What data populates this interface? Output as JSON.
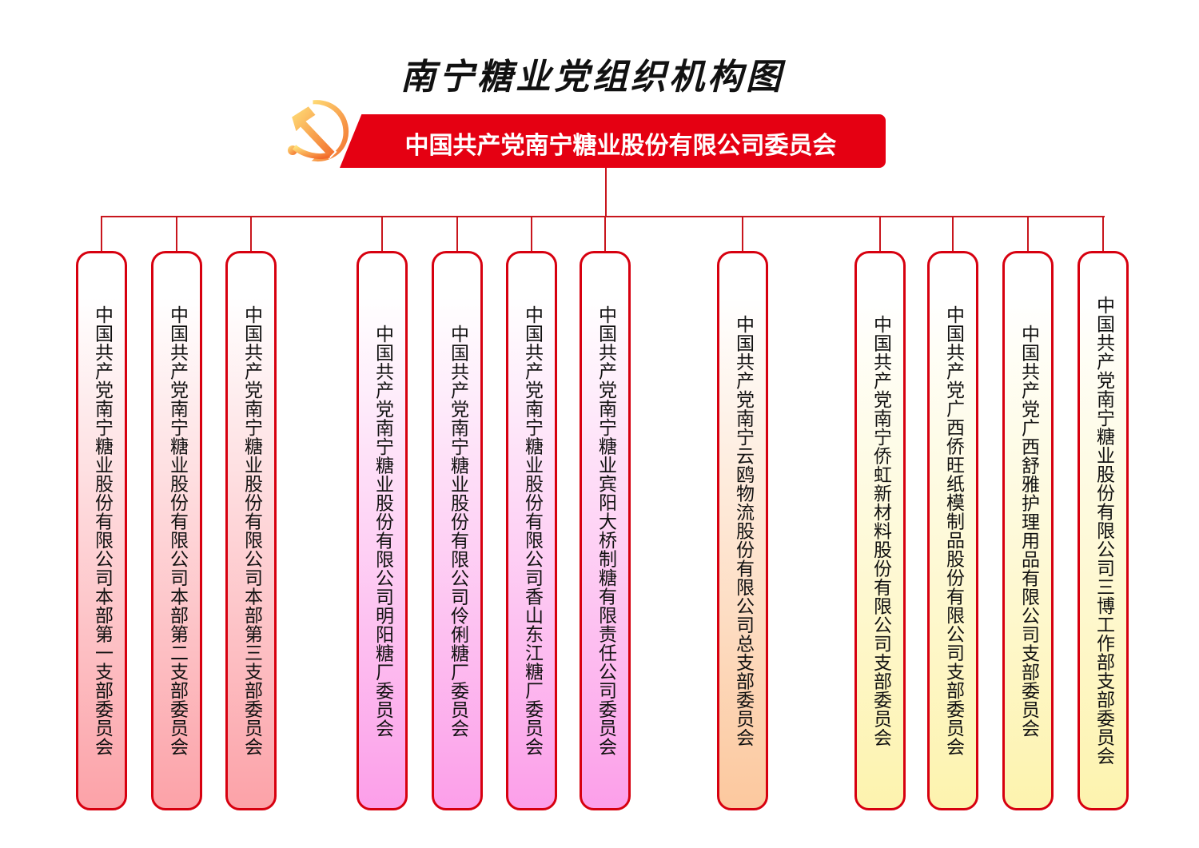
{
  "title": "南宁糖业党组织机构图",
  "root": {
    "label": "中国共产党南宁糖业股份有限公司委员会",
    "icon": "party-emblem-icon",
    "color": "#e50012"
  },
  "line_color": "#c8161d",
  "border_color": "#d7000f",
  "groups": [
    {
      "color": "#fca2a8",
      "items": [
        "中国共产党南宁糖业股份有限公司本部第一支部委员会",
        "中国共产党南宁糖业股份有限公司本部第二支部委员会",
        "中国共产党南宁糖业股份有限公司本部第三支部委员会"
      ]
    },
    {
      "color": "#fc9fe9",
      "items": [
        "中国共产党南宁糖业股份有限公司明阳糖厂委员会",
        "中国共产党南宁糖业股份有限公司伶俐糖厂委员会",
        "中国共产党南宁糖业股份有限公司香山东江糖厂委员会",
        "中国共产党南宁糖业宾阳大桥制糖有限责任公司委员会"
      ]
    },
    {
      "color": "#fcc89e",
      "items": [
        "中国共产党南宁云鸥物流股份有限公司总支部委员会"
      ]
    },
    {
      "color": "#fdf3ae",
      "items": [
        "中国共产党南宁侨虹新材料股份有限公司支部委员会",
        "中国共产党广西侨旺纸模制品股份有限公司支部委员会",
        "中国共产党广西舒雅护理用品有限公司支部委员会",
        "中国共产党南宁糖业股份有限公司三博工作部支部委员会"
      ]
    }
  ]
}
